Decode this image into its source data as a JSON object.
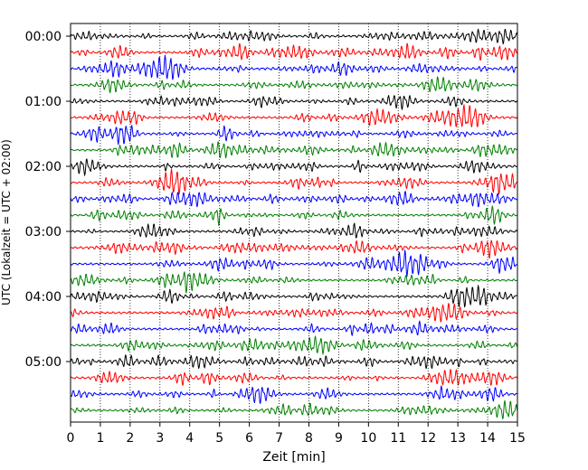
{
  "chart_data": {
    "type": "line",
    "xlabel": "Zeit  [min]",
    "ylabel": "UTC (Lokalzeit = UTC + 02:00)",
    "xlim": [
      0,
      15
    ],
    "x_ticks": [
      "0",
      "1",
      "2",
      "3",
      "4",
      "5",
      "6",
      "7",
      "8",
      "9",
      "10",
      "11",
      "12",
      "13",
      "14",
      "15"
    ],
    "y_ticks": [
      "00:00",
      "01:00",
      "02:00",
      "03:00",
      "04:00",
      "05:00"
    ],
    "traces_per_hour": 4,
    "trace_count": 24,
    "trace_interval_minutes": 15,
    "trace_colors": [
      "#000000",
      "#ff0000",
      "#0000ff",
      "#008000"
    ],
    "vertical_grid": "dotted"
  }
}
